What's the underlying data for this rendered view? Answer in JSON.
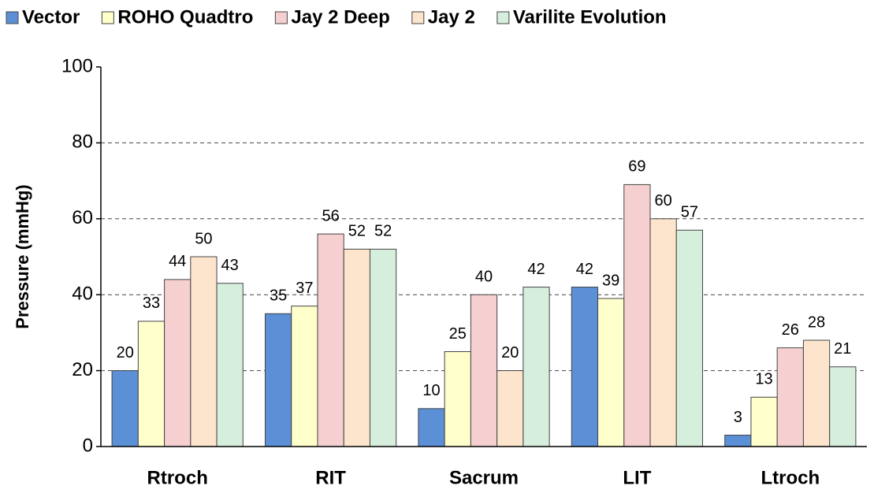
{
  "chart_data": {
    "type": "bar",
    "y_label": "Pressure (mmHg)",
    "categories": [
      "Rtroch",
      "RIT",
      "Sacrum",
      "LIT",
      "Ltroch"
    ],
    "series": [
      {
        "name": "Vector",
        "color": "#5b8fd6",
        "values": [
          20,
          35,
          10,
          42,
          3
        ]
      },
      {
        "name": "ROHO Quadtro",
        "color": "#ffffcc",
        "values": [
          33,
          37,
          25,
          39,
          13
        ]
      },
      {
        "name": "Jay 2 Deep",
        "color": "#f6d0d0",
        "values": [
          44,
          56,
          40,
          69,
          26
        ]
      },
      {
        "name": "Jay 2",
        "color": "#fde4cc",
        "values": [
          50,
          52,
          20,
          60,
          28
        ]
      },
      {
        "name": "Varilite Evolution",
        "color": "#d6eedc",
        "values": [
          43,
          52,
          42,
          57,
          21
        ]
      }
    ],
    "ylim": [
      0,
      100
    ],
    "yticks": [
      0,
      20,
      40,
      60,
      80,
      100
    ],
    "grid": true,
    "legend": "top"
  }
}
